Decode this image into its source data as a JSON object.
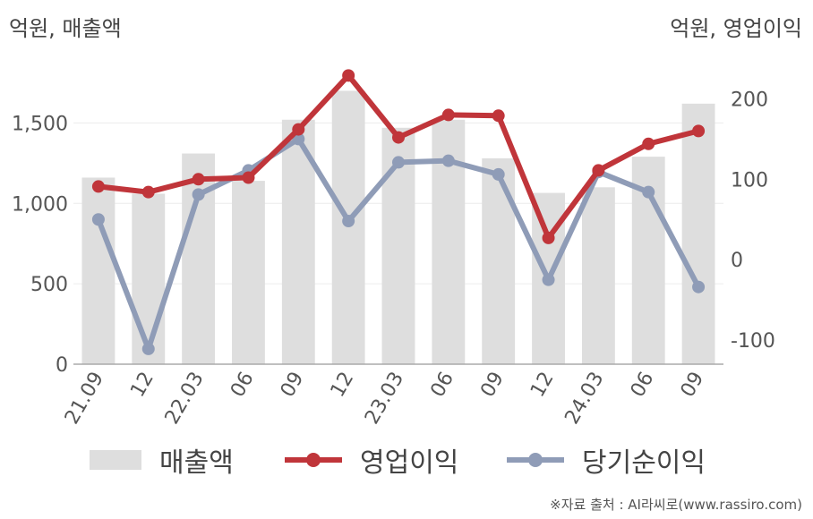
{
  "units": {
    "left": "억원, 매출액",
    "right": "억원, 영업이익"
  },
  "chart_data": {
    "type": "bar+line",
    "categories": [
      "21.09",
      "12",
      "22.03",
      "06",
      "09",
      "12",
      "23.03",
      "06",
      "09",
      "12",
      "24.03",
      "06",
      "09"
    ],
    "left_axis": {
      "ylim": [
        0,
        1875
      ],
      "ticks": [
        0,
        500,
        1000,
        1500
      ],
      "tick_labels": [
        "0",
        "500",
        "1,000",
        "1,500"
      ]
    },
    "right_axis": {
      "ylim": [
        -130,
        245
      ],
      "ticks": [
        -100,
        0,
        100,
        200
      ],
      "tick_labels": [
        "-100",
        "0",
        "100",
        "200"
      ]
    },
    "grid": true,
    "legend_position": "bottom",
    "series": [
      {
        "name": "매출액",
        "kind": "bar",
        "axis": "left",
        "color": "#dedede",
        "values": [
          1160,
          1060,
          1310,
          1140,
          1520,
          1700,
          1470,
          1520,
          1280,
          1065,
          1100,
          1290,
          1620
        ]
      },
      {
        "name": "영업이익",
        "kind": "line",
        "axis": "right",
        "color": "#c0353a",
        "values": [
          91,
          84,
          100,
          102,
          162,
          229,
          152,
          180,
          179,
          27,
          111,
          144,
          160
        ]
      },
      {
        "name": "당기순이익",
        "kind": "line",
        "axis": "right",
        "color": "#8f9cb7",
        "values": [
          50,
          -111,
          81,
          111,
          150,
          48,
          121,
          123,
          106,
          -25,
          109,
          84,
          -34
        ]
      }
    ]
  },
  "source": "※자료 출처 : AI라씨로(www.rassiro.com)"
}
